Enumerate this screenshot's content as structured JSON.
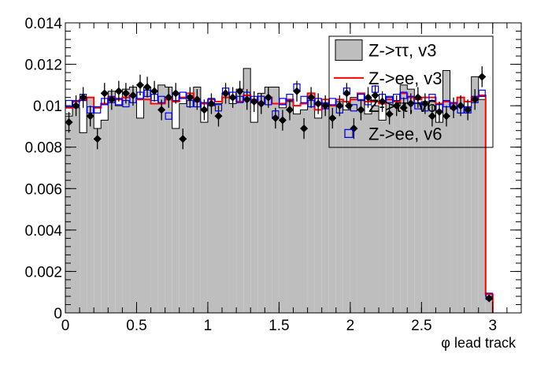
{
  "chart_data": {
    "type": "histogram",
    "xlabel": "φ lead track",
    "xlim": [
      0,
      3.2
    ],
    "ylim": [
      0,
      0.014
    ],
    "x_ticks": [
      {
        "value": 0,
        "label": "0"
      },
      {
        "value": 0.5,
        "label": "0.5"
      },
      {
        "value": 1,
        "label": "1"
      },
      {
        "value": 1.5,
        "label": "1.5"
      },
      {
        "value": 2,
        "label": "2"
      },
      {
        "value": 2.5,
        "label": "2.5"
      },
      {
        "value": 3,
        "label": "3"
      }
    ],
    "y_ticks": [
      {
        "value": 0,
        "label": "0"
      },
      {
        "value": 0.002,
        "label": "0.002"
      },
      {
        "value": 0.004,
        "label": "0.004"
      },
      {
        "value": 0.006,
        "label": "0.006"
      },
      {
        "value": 0.008,
        "label": "0.008"
      },
      {
        "value": 0.01,
        "label": "0.01"
      },
      {
        "value": 0.012,
        "label": "0.012"
      },
      {
        "value": 0.014,
        "label": "0.014"
      }
    ],
    "bin_width": 0.05,
    "bin_start": 0,
    "series": [
      {
        "name": "Z->ττ, v3",
        "style": "filled-histogram",
        "color": "#bebebe",
        "values": [
          0.0095,
          0.0099,
          0.0087,
          0.0104,
          0.0089,
          0.0093,
          0.0107,
          0.01,
          0.0108,
          0.0109,
          0.0094,
          0.0109,
          0.0101,
          0.011,
          0.0109,
          0.0089,
          0.0101,
          0.0105,
          0.0109,
          0.0092,
          0.01,
          0.0101,
          0.0106,
          0.0101,
          0.0108,
          0.0118,
          0.0092,
          0.0106,
          0.0109,
          0.0109,
          0.0099,
          0.0102,
          0.0096,
          0.0098,
          0.0106,
          0.0094,
          0.0101,
          0.01,
          0.0102,
          0.0098,
          0.0104,
          0.0103,
          0.0096,
          0.01,
          0.0093,
          0.0104,
          0.01,
          0.011,
          0.0108,
          0.0101,
          0.0102,
          0.0102,
          0.0092,
          0.0117,
          0.0101,
          0.0104,
          0.0099,
          0.0114,
          0.0103,
          0.0008
        ]
      },
      {
        "name": "Z->ee, v3",
        "style": "line-histogram",
        "color": "#ff0000",
        "values": [
          0.0099,
          0.0102,
          0.0103,
          0.0104,
          0.0099,
          0.0101,
          0.0104,
          0.0103,
          0.0104,
          0.0105,
          0.0103,
          0.0103,
          0.0101,
          0.0101,
          0.0103,
          0.0102,
          0.0104,
          0.0106,
          0.0102,
          0.0101,
          0.0103,
          0.0102,
          0.0104,
          0.0104,
          0.0102,
          0.0105,
          0.0103,
          0.0101,
          0.0104,
          0.0101,
          0.0101,
          0.0103,
          0.01,
          0.0101,
          0.0106,
          0.0098,
          0.0103,
          0.01,
          0.0103,
          0.0102,
          0.0103,
          0.0106,
          0.0102,
          0.0102,
          0.0101,
          0.0103,
          0.0102,
          0.0106,
          0.0104,
          0.0103,
          0.0104,
          0.0104,
          0.0101,
          0.0102,
          0.0101,
          0.0104,
          0.0102,
          0.0104,
          0.0105,
          0.0009
        ]
      },
      {
        "name": "Z->ττ, v6",
        "style": "markers-errorbars",
        "color": "#000000",
        "values": [
          0.0092,
          0.01,
          0.0104,
          0.0095,
          0.0084,
          0.0106,
          0.0103,
          0.0107,
          0.0106,
          0.0105,
          0.011,
          0.0109,
          0.0107,
          0.0098,
          0.0104,
          0.0106,
          0.0084,
          0.0104,
          0.0103,
          0.0098,
          0.0101,
          0.0095,
          0.0106,
          0.0104,
          0.0107,
          0.0103,
          0.0102,
          0.0101,
          0.0104,
          0.0094,
          0.0093,
          0.0098,
          0.0107,
          0.0089,
          0.0104,
          0.0101,
          0.01,
          0.0094,
          0.01,
          0.0106,
          0.0089,
          0.0098,
          0.0104,
          0.0105,
          0.0102,
          0.0096,
          0.01,
          0.0099,
          0.0101,
          0.0104,
          0.0101,
          0.0095,
          0.0097,
          0.0095,
          0.0099,
          0.01,
          0.0098,
          0.0103,
          0.0114,
          0.0007
        ],
        "errors": [
          0.0005,
          0.0005,
          0.0005,
          0.0005,
          0.0005,
          0.0005,
          0.0005,
          0.0005,
          0.0005,
          0.0005,
          0.0005,
          0.0005,
          0.0005,
          0.0005,
          0.0005,
          0.0005,
          0.0005,
          0.0005,
          0.0005,
          0.0005,
          0.0005,
          0.0005,
          0.0005,
          0.0005,
          0.0005,
          0.0005,
          0.0005,
          0.0005,
          0.0005,
          0.0005,
          0.0005,
          0.0005,
          0.0005,
          0.0005,
          0.0005,
          0.0005,
          0.0005,
          0.0005,
          0.0005,
          0.0005,
          0.0005,
          0.0005,
          0.0005,
          0.0005,
          0.0005,
          0.0005,
          0.0005,
          0.0005,
          0.0005,
          0.0005,
          0.0005,
          0.0005,
          0.0005,
          0.0005,
          0.0005,
          0.0005,
          0.0005,
          0.0005,
          0.0005,
          0.0001
        ]
      },
      {
        "name": "Z->ee, v6",
        "style": "open-squares",
        "color": "#0000ff",
        "values": [
          0.0101,
          0.0101,
          0.0104,
          0.0098,
          0.0098,
          0.0102,
          0.0103,
          0.0102,
          0.0101,
          0.0103,
          0.0105,
          0.0106,
          0.0104,
          0.0103,
          0.0095,
          0.0104,
          0.0105,
          0.0101,
          0.0101,
          0.01,
          0.0102,
          0.0099,
          0.0107,
          0.0105,
          0.0103,
          0.0105,
          0.0103,
          0.0103,
          0.0102,
          0.0096,
          0.0102,
          0.0104,
          0.0109,
          0.0103,
          0.0101,
          0.0102,
          0.01,
          0.0102,
          0.0098,
          0.0107,
          0.0099,
          0.0104,
          0.0102,
          0.0108,
          0.0104,
          0.0103,
          0.0104,
          0.0105,
          0.0103,
          0.01,
          0.0099,
          0.0104,
          0.0099,
          0.0101,
          0.01,
          0.0098,
          0.0098,
          0.0103,
          0.0106,
          0.0008
        ]
      }
    ],
    "legend": {
      "position": "top-right",
      "entries": [
        {
          "label": "Z->ττ, v3",
          "style": "filled-box"
        },
        {
          "label": "Z->ee, v3",
          "style": "line"
        },
        {
          "label": "Z->ττ, v6",
          "style": "marker"
        },
        {
          "label": "Z->ee, v6",
          "style": "open-square"
        }
      ]
    }
  }
}
